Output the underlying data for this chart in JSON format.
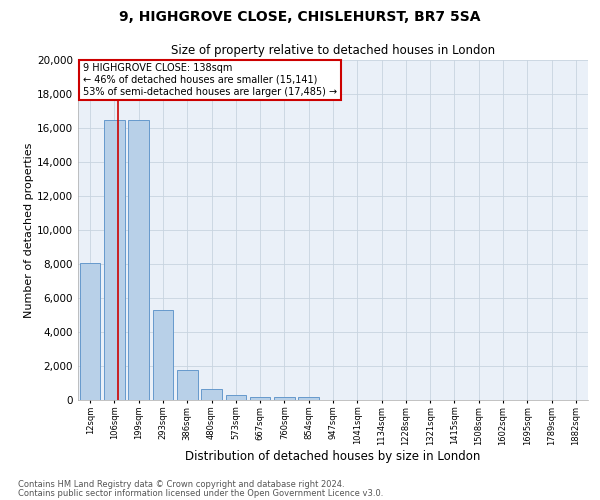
{
  "title1": "9, HIGHGROVE CLOSE, CHISLEHURST, BR7 5SA",
  "title2": "Size of property relative to detached houses in London",
  "xlabel": "Distribution of detached houses by size in London",
  "ylabel": "Number of detached properties",
  "annotation_title": "9 HIGHGROVE CLOSE: 138sqm",
  "annotation_line2": "← 46% of detached houses are smaller (15,141)",
  "annotation_line3": "53% of semi-detached houses are larger (17,485) →",
  "footnote1": "Contains HM Land Registry data © Crown copyright and database right 2024.",
  "footnote2": "Contains public sector information licensed under the Open Government Licence v3.0.",
  "categories": [
    "12sqm",
    "106sqm",
    "199sqm",
    "293sqm",
    "386sqm",
    "480sqm",
    "573sqm",
    "667sqm",
    "760sqm",
    "854sqm",
    "947sqm",
    "1041sqm",
    "1134sqm",
    "1228sqm",
    "1321sqm",
    "1415sqm",
    "1508sqm",
    "1602sqm",
    "1695sqm",
    "1789sqm",
    "1882sqm"
  ],
  "values": [
    8050,
    16500,
    16500,
    5300,
    1750,
    650,
    300,
    200,
    180,
    150,
    0,
    0,
    0,
    0,
    0,
    0,
    0,
    0,
    0,
    0,
    0
  ],
  "bar_color": "#b8d0e8",
  "bar_edge_color": "#6699cc",
  "vline_color": "#cc0000",
  "vline_x": 1.15,
  "annotation_box_color": "#cc0000",
  "ylim": [
    0,
    20000
  ],
  "yticks": [
    0,
    2000,
    4000,
    6000,
    8000,
    10000,
    12000,
    14000,
    16000,
    18000,
    20000
  ],
  "grid_color": "#c8d4e0",
  "bg_color": "#eaf0f8"
}
